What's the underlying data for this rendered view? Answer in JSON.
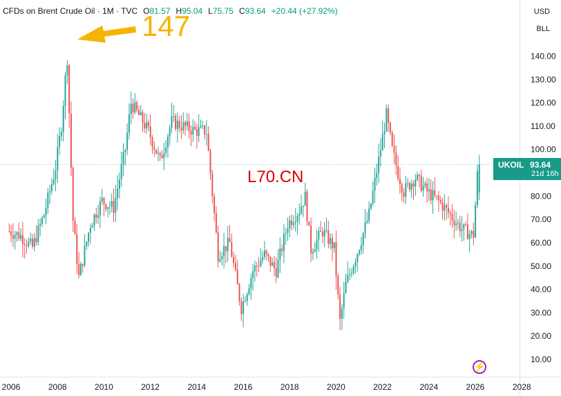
{
  "header": {
    "symbol": "CFDs on Brent Crude Oil · 1M · TVC",
    "open_label": "O",
    "open_value": "81.57",
    "high_label": "H",
    "high_value": "95.04",
    "low_label": "L",
    "low_value": "75.75",
    "close_label": "C",
    "close_value": "93.64",
    "change": "+20.44 (+27.92%)"
  },
  "currency": "USD",
  "unit": "BLL",
  "annotation": "147",
  "watermark": "L70.CN",
  "last_price": {
    "symbol": "UKOIL",
    "value": "93.64",
    "countdown": "21d 16h"
  },
  "colors": {
    "up": "#26a69a",
    "down": "#ef5350",
    "annotation": "#f5b400",
    "watermark": "#d60000",
    "last_label_bg": "#1a9a8a"
  },
  "icons": {
    "bolt": "lightning-bolt-icon"
  },
  "chart_data": {
    "type": "candlestick",
    "title": "CFDs on Brent Crude Oil · 1M · TVC",
    "xlabel": "",
    "ylabel": "",
    "ylim": [
      0,
      150
    ],
    "xlim": [
      2005.9,
      2026.9
    ],
    "y_ticks": [
      "10.00",
      "20.00",
      "30.00",
      "40.00",
      "50.00",
      "60.00",
      "70.00",
      "80.00",
      "90.00",
      "100.00",
      "110.00",
      "120.00",
      "130.00",
      "140.00"
    ],
    "x_ticks": [
      "2006",
      "2008",
      "2010",
      "2012",
      "2014",
      "2016",
      "2018",
      "2020",
      "2022",
      "2024",
      "2026",
      "2028"
    ],
    "grid": false,
    "series": [
      {
        "x": [
          "2006",
          "2006.5",
          "2007",
          "2007.5",
          "2008",
          "2008.25",
          "2008.5",
          "2008.75",
          "2009",
          "2009.5",
          "2010",
          "2010.5",
          "2011",
          "2011.25",
          "2011.5",
          "2012",
          "2012.5",
          "2013",
          "2013.5",
          "2014",
          "2014.5",
          "2015",
          "2015.5",
          "2016",
          "2016.5",
          "2017",
          "2017.5",
          "2018",
          "2018.5",
          "2018.75",
          "2019",
          "2019.5",
          "2020",
          "2020.25",
          "2020.5",
          "2021",
          "2021.5",
          "2022",
          "2022.25",
          "2022.5",
          "2022.75",
          "2023",
          "2023.5",
          "2024",
          "2024.5",
          "2025",
          "2025.5",
          "2026",
          "2026.2"
        ],
        "values": [
          65,
          63,
          58,
          72,
          92,
          110,
          140,
          70,
          45,
          68,
          78,
          75,
          100,
          120,
          116,
          108,
          95,
          112,
          110,
          108,
          108,
          55,
          60,
          32,
          48,
          55,
          48,
          68,
          74,
          80,
          57,
          65,
          58,
          26,
          42,
          56,
          72,
          100,
          115,
          100,
          90,
          82,
          88,
          82,
          78,
          72,
          66,
          63,
          93.64
        ]
      }
    ],
    "annotations": [
      {
        "text": "147",
        "x": "2008.5",
        "y": 147
      }
    ],
    "last_value": 93.64
  }
}
